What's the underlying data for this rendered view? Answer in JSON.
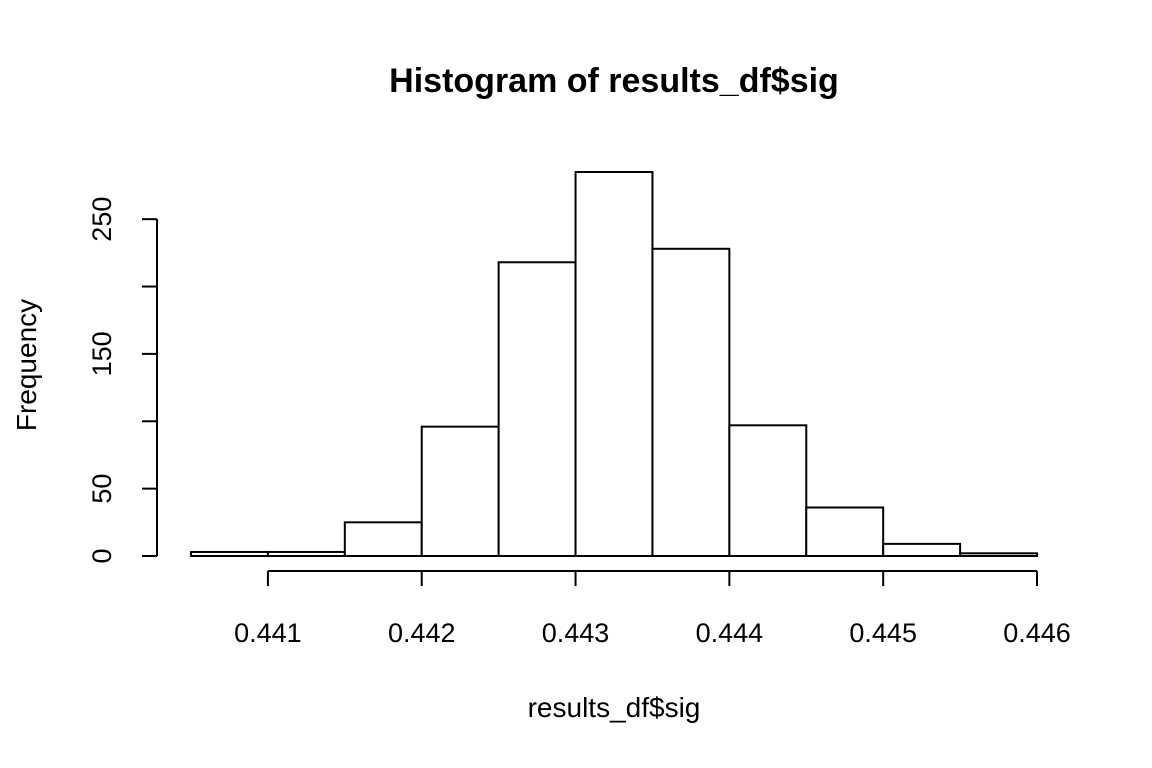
{
  "chart_data": {
    "type": "bar",
    "title": "Histogram of results_df$sig",
    "xlabel": "results_df$sig",
    "ylabel": "Frequency",
    "bin_edges": [
      0.4405,
      0.441,
      0.4415,
      0.442,
      0.4425,
      0.443,
      0.4435,
      0.444,
      0.4445,
      0.445,
      0.4455,
      0.446
    ],
    "values": [
      3,
      3,
      25,
      96,
      218,
      285,
      228,
      97,
      36,
      9,
      2
    ],
    "xlim": [
      0.4405,
      0.446
    ],
    "ylim": [
      0,
      285
    ],
    "x_ticks": [
      0.441,
      0.442,
      0.443,
      0.444,
      0.445,
      0.446
    ],
    "x_tick_labels": [
      "0.441",
      "0.442",
      "0.443",
      "0.444",
      "0.445",
      "0.446"
    ],
    "y_ticks": [
      0,
      50,
      100,
      150,
      200,
      250
    ],
    "y_tick_labels": [
      "0",
      "50",
      "",
      "150",
      "",
      "250"
    ],
    "grid": false,
    "legend": "none",
    "bar_fill": "#ffffff",
    "bar_stroke": "#000000"
  }
}
